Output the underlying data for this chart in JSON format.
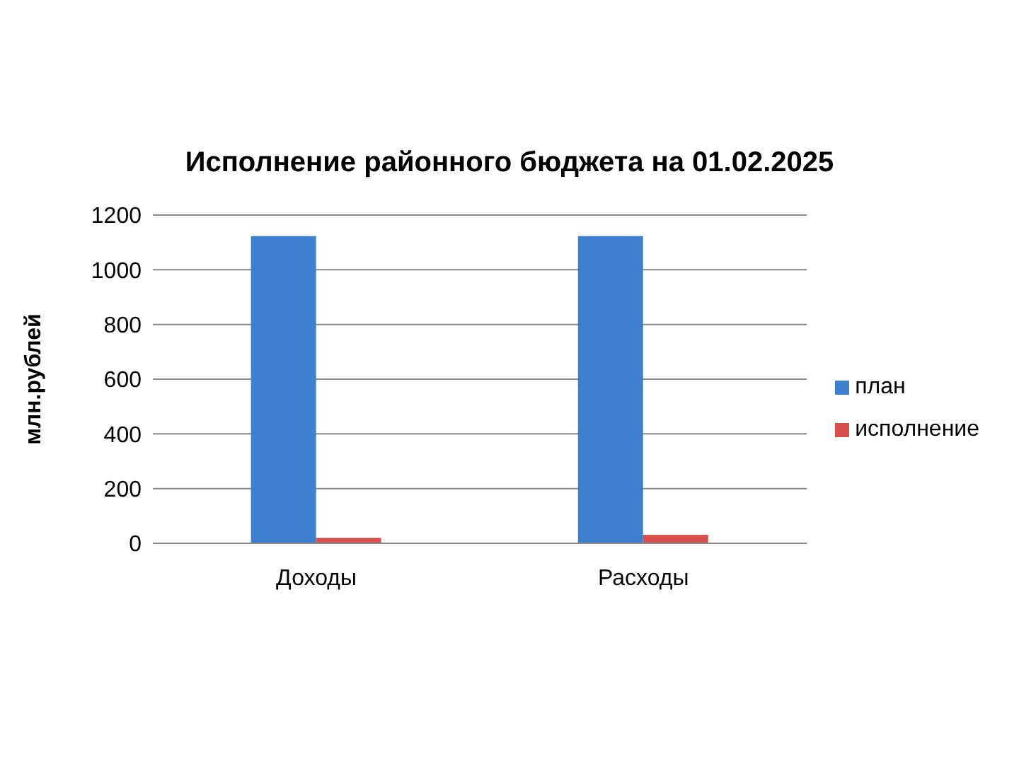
{
  "chart_data": {
    "type": "bar",
    "title": "Исполнение районного бюджета на 01.02.2025",
    "ylabel": "млн.рублей",
    "categories": [
      "Доходы",
      "Расходы"
    ],
    "series": [
      {
        "name": "план",
        "color": "#3f7fd0",
        "values": [
          1123,
          1123
        ]
      },
      {
        "name": "исполнение",
        "color": "#d9504c",
        "values": [
          20,
          31
        ]
      }
    ],
    "ylim": [
      0,
      1200
    ],
    "yticks": [
      0,
      200,
      400,
      600,
      800,
      1000,
      1200
    ],
    "grid": "y",
    "legend": "right"
  }
}
